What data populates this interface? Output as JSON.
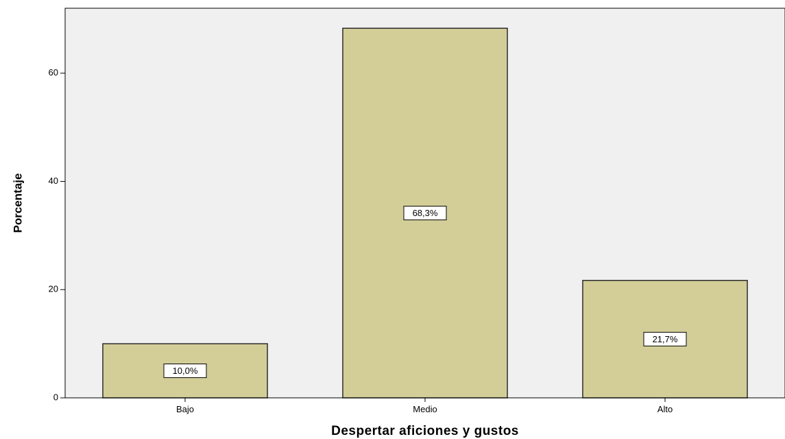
{
  "chart_data": {
    "type": "bar",
    "categories": [
      "Bajo",
      "Medio",
      "Alto"
    ],
    "values": [
      10.0,
      68.3,
      21.7
    ],
    "data_labels": [
      "10,0%",
      "68,3%",
      "21,7%"
    ],
    "title": "",
    "xlabel": "Despertar aficiones y gustos",
    "ylabel": "Porcentaje",
    "ylim": [
      0,
      72
    ],
    "yticks": [
      0,
      20,
      40,
      60
    ],
    "grid": false,
    "colors": {
      "bar_fill": "#d3ce98",
      "bar_stroke": "#2b2b2b",
      "plot_background": "#f0f0f0",
      "axis": "#000000"
    }
  }
}
